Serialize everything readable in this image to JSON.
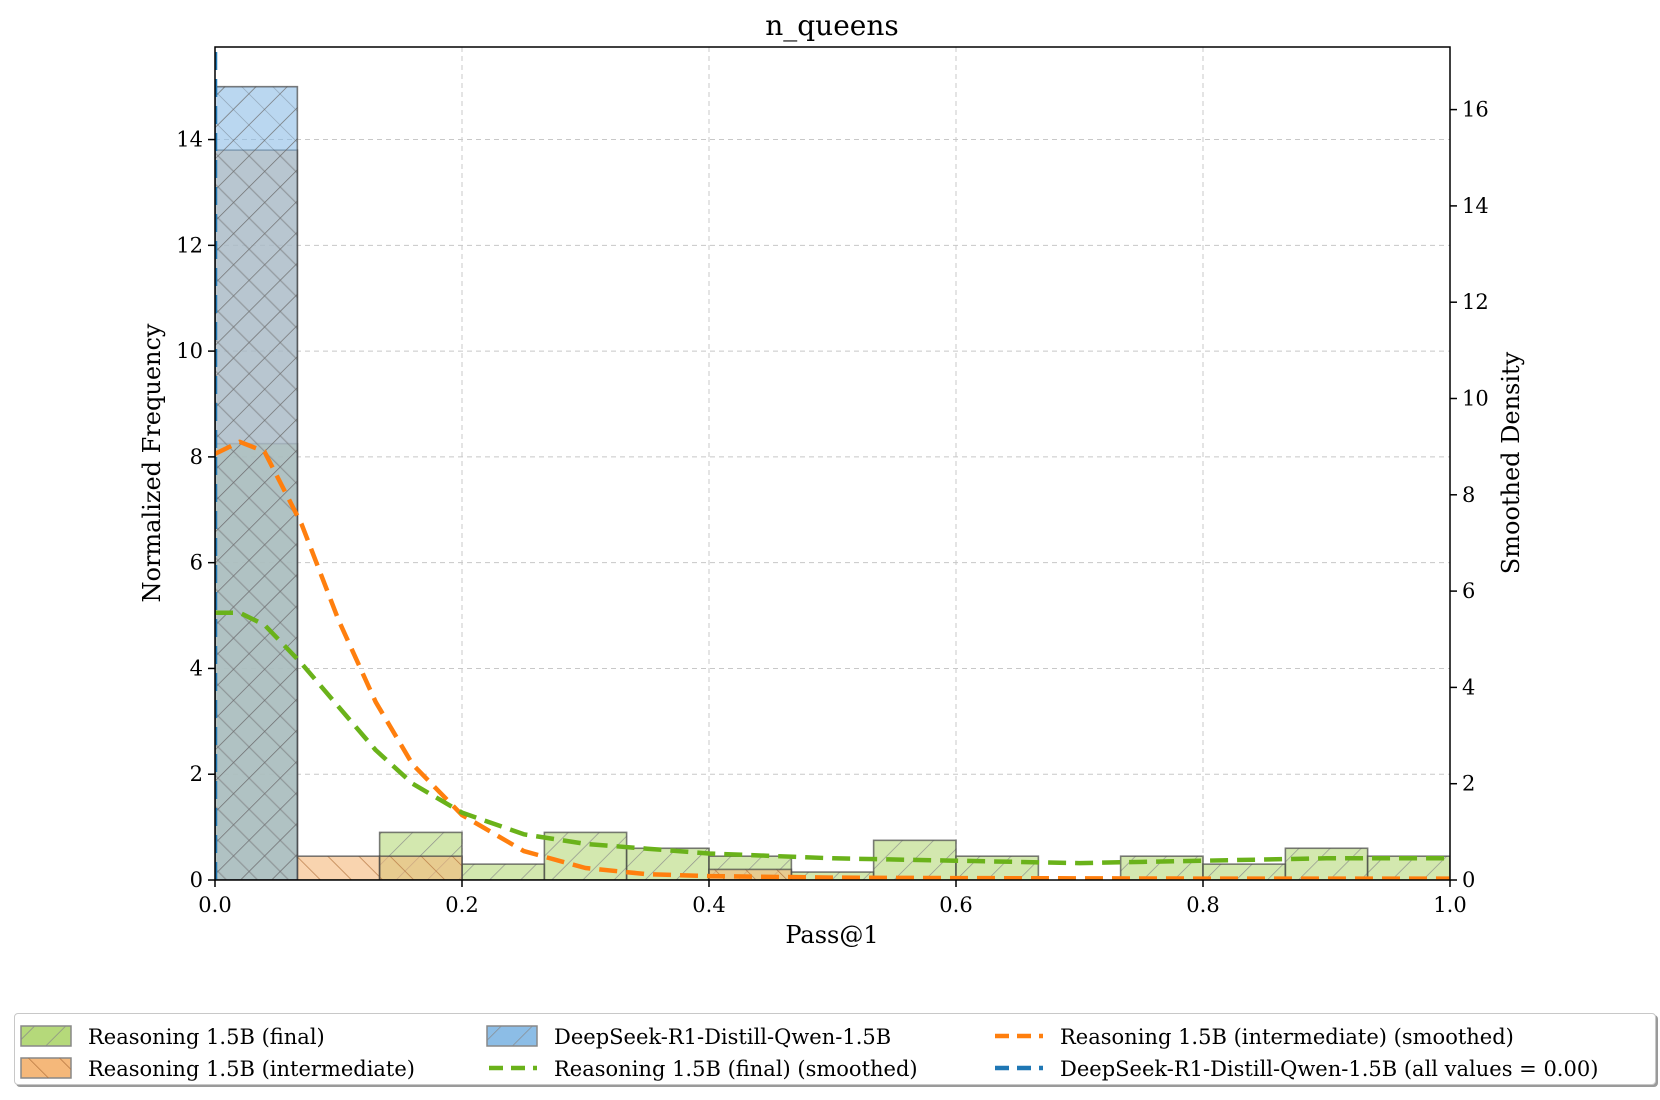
{
  "chart_data": {
    "type": "bar",
    "title": "n_queens",
    "xlabel": "Pass@1",
    "ylabel": "Normalized Frequency",
    "y2label": "Smoothed Density",
    "xlim": [
      0,
      1
    ],
    "ylim": [
      0,
      15.75
    ],
    "y2lim": [
      0,
      17.3
    ],
    "xticks": [
      "0.0",
      "0.2",
      "0.4",
      "0.6",
      "0.8",
      "1.0"
    ],
    "yticks": [
      "0",
      "2",
      "4",
      "6",
      "8",
      "10",
      "12",
      "14"
    ],
    "y2ticks": [
      "0",
      "2",
      "4",
      "6",
      "8",
      "10",
      "12",
      "14",
      "16"
    ],
    "grid": true,
    "legend_position": "bottom",
    "bin_edges": [
      0,
      0.0667,
      0.1333,
      0.2,
      0.2667,
      0.3333,
      0.4,
      0.4667,
      0.5333,
      0.6,
      0.6667,
      0.7333,
      0.8,
      0.8667,
      0.9333,
      1.0
    ],
    "histograms": [
      {
        "name": "Reasoning 1.5B (final)",
        "color": "#b5d97a",
        "hatch": "diagonal",
        "values": [
          8.25,
          0,
          0.9,
          0.3,
          0.9,
          0.6,
          0.45,
          0.15,
          0.75,
          0.45,
          0,
          0.45,
          0.3,
          0.6,
          0.45
        ]
      },
      {
        "name": "Reasoning 1.5B (intermediate)",
        "color": "#f5b87a",
        "hatch": "back-diagonal",
        "values": [
          13.8,
          0.45,
          0.45,
          0,
          0,
          0,
          0.2,
          0,
          0,
          0,
          0,
          0,
          0,
          0,
          0
        ]
      },
      {
        "name": "DeepSeek-R1-Distill-Qwen-1.5B",
        "color": "#8cbde6",
        "hatch": "diagonal",
        "values": [
          15.0,
          0,
          0,
          0,
          0,
          0,
          0,
          0,
          0,
          0,
          0,
          0,
          0,
          0,
          0
        ]
      }
    ],
    "smoothed_series": [
      {
        "name": "Reasoning 1.5B (intermediate) (smoothed)",
        "color": "#ff7f0e",
        "x": [
          0,
          0.02,
          0.04,
          0.07,
          0.1,
          0.13,
          0.16,
          0.2,
          0.25,
          0.3,
          0.35,
          0.4,
          0.5,
          0.6,
          0.8,
          1.0
        ],
        "y": [
          8.85,
          9.1,
          8.9,
          7.4,
          5.4,
          3.7,
          2.4,
          1.35,
          0.6,
          0.25,
          0.12,
          0.08,
          0.05,
          0.04,
          0.03,
          0.03
        ]
      },
      {
        "name": "Reasoning 1.5B (final) (smoothed)",
        "color": "#6ab21a",
        "x": [
          0,
          0.02,
          0.04,
          0.07,
          0.1,
          0.13,
          0.16,
          0.2,
          0.25,
          0.3,
          0.35,
          0.4,
          0.5,
          0.6,
          0.7,
          0.8,
          0.9,
          1.0
        ],
        "y": [
          5.55,
          5.55,
          5.3,
          4.5,
          3.6,
          2.7,
          2.0,
          1.4,
          0.95,
          0.75,
          0.65,
          0.55,
          0.45,
          0.4,
          0.35,
          0.4,
          0.45,
          0.45
        ]
      },
      {
        "name": "DeepSeek-R1-Distill-Qwen-1.5B (all values = 0.00)",
        "color": "#1f77b4",
        "x": [
          0,
          0
        ],
        "y": [
          0,
          17.3
        ]
      }
    ]
  },
  "legend": [
    {
      "label": "Reasoning 1.5B (final)",
      "kind": "patch",
      "color": "#b5d97a",
      "hatch": "diagonal"
    },
    {
      "label": "Reasoning 1.5B (intermediate)",
      "kind": "patch",
      "color": "#f5b87a",
      "hatch": "back-diagonal"
    },
    {
      "label": "DeepSeek-R1-Distill-Qwen-1.5B",
      "kind": "patch",
      "color": "#8cbde6",
      "hatch": "diagonal"
    },
    {
      "label": "Reasoning 1.5B (final) (smoothed)",
      "kind": "line",
      "color": "#6ab21a"
    },
    {
      "label": "Reasoning 1.5B (intermediate) (smoothed)",
      "kind": "line",
      "color": "#ff7f0e"
    },
    {
      "label": "DeepSeek-R1-Distill-Qwen-1.5B (all values = 0.00)",
      "kind": "line",
      "color": "#1f77b4"
    }
  ]
}
